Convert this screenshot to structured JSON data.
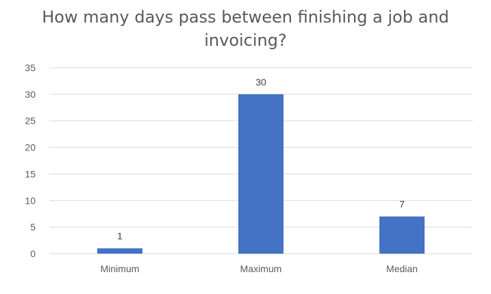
{
  "chart_data": {
    "type": "bar",
    "title": "How many days pass between finishing a job and invoicing?",
    "title_lines": [
      "How many days pass between finishing a job and",
      "invoicing?"
    ],
    "categories": [
      "Minimum",
      "Maximum",
      "Median"
    ],
    "values": [
      1,
      30,
      7
    ],
    "data_labels": [
      "1",
      "30",
      "7"
    ],
    "xlabel": "",
    "ylabel": "",
    "ylim": [
      0,
      35
    ],
    "yticks": [
      0,
      5,
      10,
      15,
      20,
      25,
      30,
      35
    ],
    "grid": true,
    "legend": "none",
    "bar_color": "#4472C4",
    "grid_color": "#D9D9D9",
    "text_color": "#595959"
  }
}
